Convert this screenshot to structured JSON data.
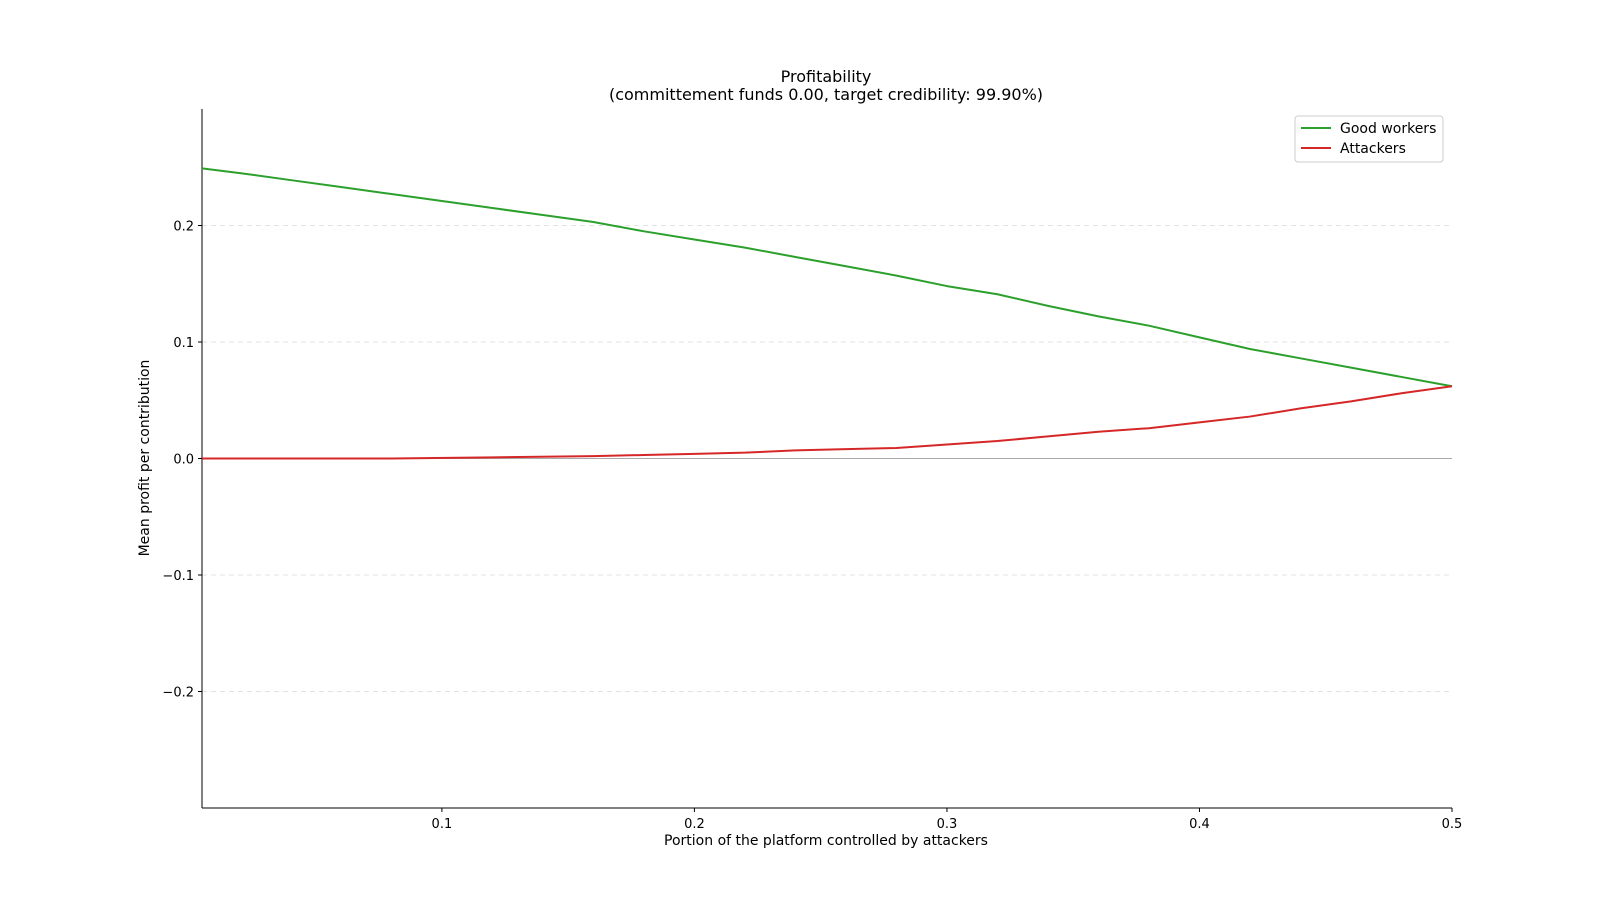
{
  "chart_data": {
    "type": "line",
    "title": "Profitability",
    "subtitle": "(committement funds 0.00, target credibility: 99.90%)",
    "xlabel": "Portion of the platform controlled by attackers",
    "ylabel": "Mean profit per contribution",
    "xlim": [
      0.005,
      0.5
    ],
    "ylim": [
      -0.3,
      0.3
    ],
    "x_ticks": [
      0.1,
      0.2,
      0.3,
      0.4,
      0.5
    ],
    "x_tick_labels": [
      "0.1",
      "0.2",
      "0.3",
      "0.4",
      "0.5"
    ],
    "y_ticks": [
      0.2,
      0.1,
      0.0,
      -0.1,
      -0.2
    ],
    "y_tick_labels": [
      "0.2",
      "0.1",
      "0.0",
      "−0.1",
      "−0.2"
    ],
    "grid": "y-dashed",
    "zero_line": true,
    "legend_position": "upper right",
    "series": [
      {
        "name": "Good workers",
        "color": "#2ca02c",
        "x": [
          0.005,
          0.02,
          0.04,
          0.06,
          0.08,
          0.1,
          0.12,
          0.14,
          0.16,
          0.18,
          0.2,
          0.22,
          0.24,
          0.26,
          0.28,
          0.3,
          0.32,
          0.34,
          0.36,
          0.38,
          0.4,
          0.42,
          0.44,
          0.46,
          0.48,
          0.5
        ],
        "y": [
          0.249,
          0.245,
          0.239,
          0.233,
          0.227,
          0.221,
          0.215,
          0.209,
          0.203,
          0.195,
          0.188,
          0.181,
          0.173,
          0.165,
          0.157,
          0.148,
          0.141,
          0.131,
          0.122,
          0.114,
          0.104,
          0.094,
          0.086,
          0.078,
          0.07,
          0.062
        ]
      },
      {
        "name": "Attackers",
        "color": "#d62728",
        "x": [
          0.005,
          0.04,
          0.08,
          0.12,
          0.16,
          0.18,
          0.2,
          0.22,
          0.24,
          0.26,
          0.28,
          0.3,
          0.32,
          0.34,
          0.36,
          0.38,
          0.4,
          0.42,
          0.44,
          0.46,
          0.48,
          0.5
        ],
        "y": [
          0.0,
          0.0,
          0.0,
          0.001,
          0.002,
          0.003,
          0.004,
          0.005,
          0.007,
          0.008,
          0.009,
          0.012,
          0.015,
          0.019,
          0.023,
          0.026,
          0.031,
          0.036,
          0.043,
          0.049,
          0.056,
          0.062
        ]
      }
    ]
  }
}
